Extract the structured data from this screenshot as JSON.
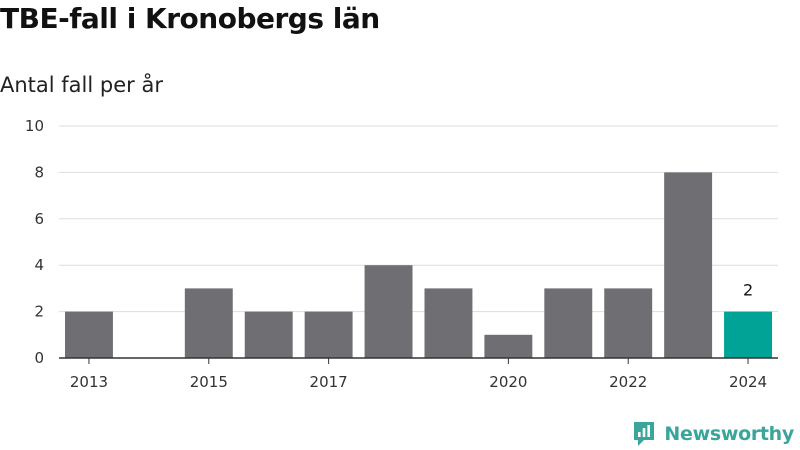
{
  "chart_data": {
    "type": "bar",
    "title": "TBE-fall i Kronobergs län",
    "subtitle": "Antal fall per år",
    "categories": [
      "2013",
      "2014",
      "2015",
      "2016",
      "2017",
      "2018",
      "2019",
      "2020",
      "2021",
      "2022",
      "2023",
      "2024"
    ],
    "x_tick_labels": [
      "2013",
      "",
      "2015",
      "",
      "2017",
      "",
      "",
      "2020",
      "",
      "2022",
      "",
      "2024"
    ],
    "values": [
      2,
      0,
      3,
      2,
      2,
      4,
      3,
      1,
      3,
      3,
      8,
      2
    ],
    "highlight_index": 11,
    "highlight_label": "2",
    "ylim": [
      0,
      10
    ],
    "yticks": [
      0,
      2,
      4,
      6,
      8,
      10
    ],
    "grid": true,
    "colors": {
      "bar": "#6f6e73",
      "highlight": "#00a396",
      "grid": "#dddddd",
      "axis": "#333333"
    }
  },
  "brand": {
    "name": "Newsworthy",
    "color": "#3aa59a"
  }
}
